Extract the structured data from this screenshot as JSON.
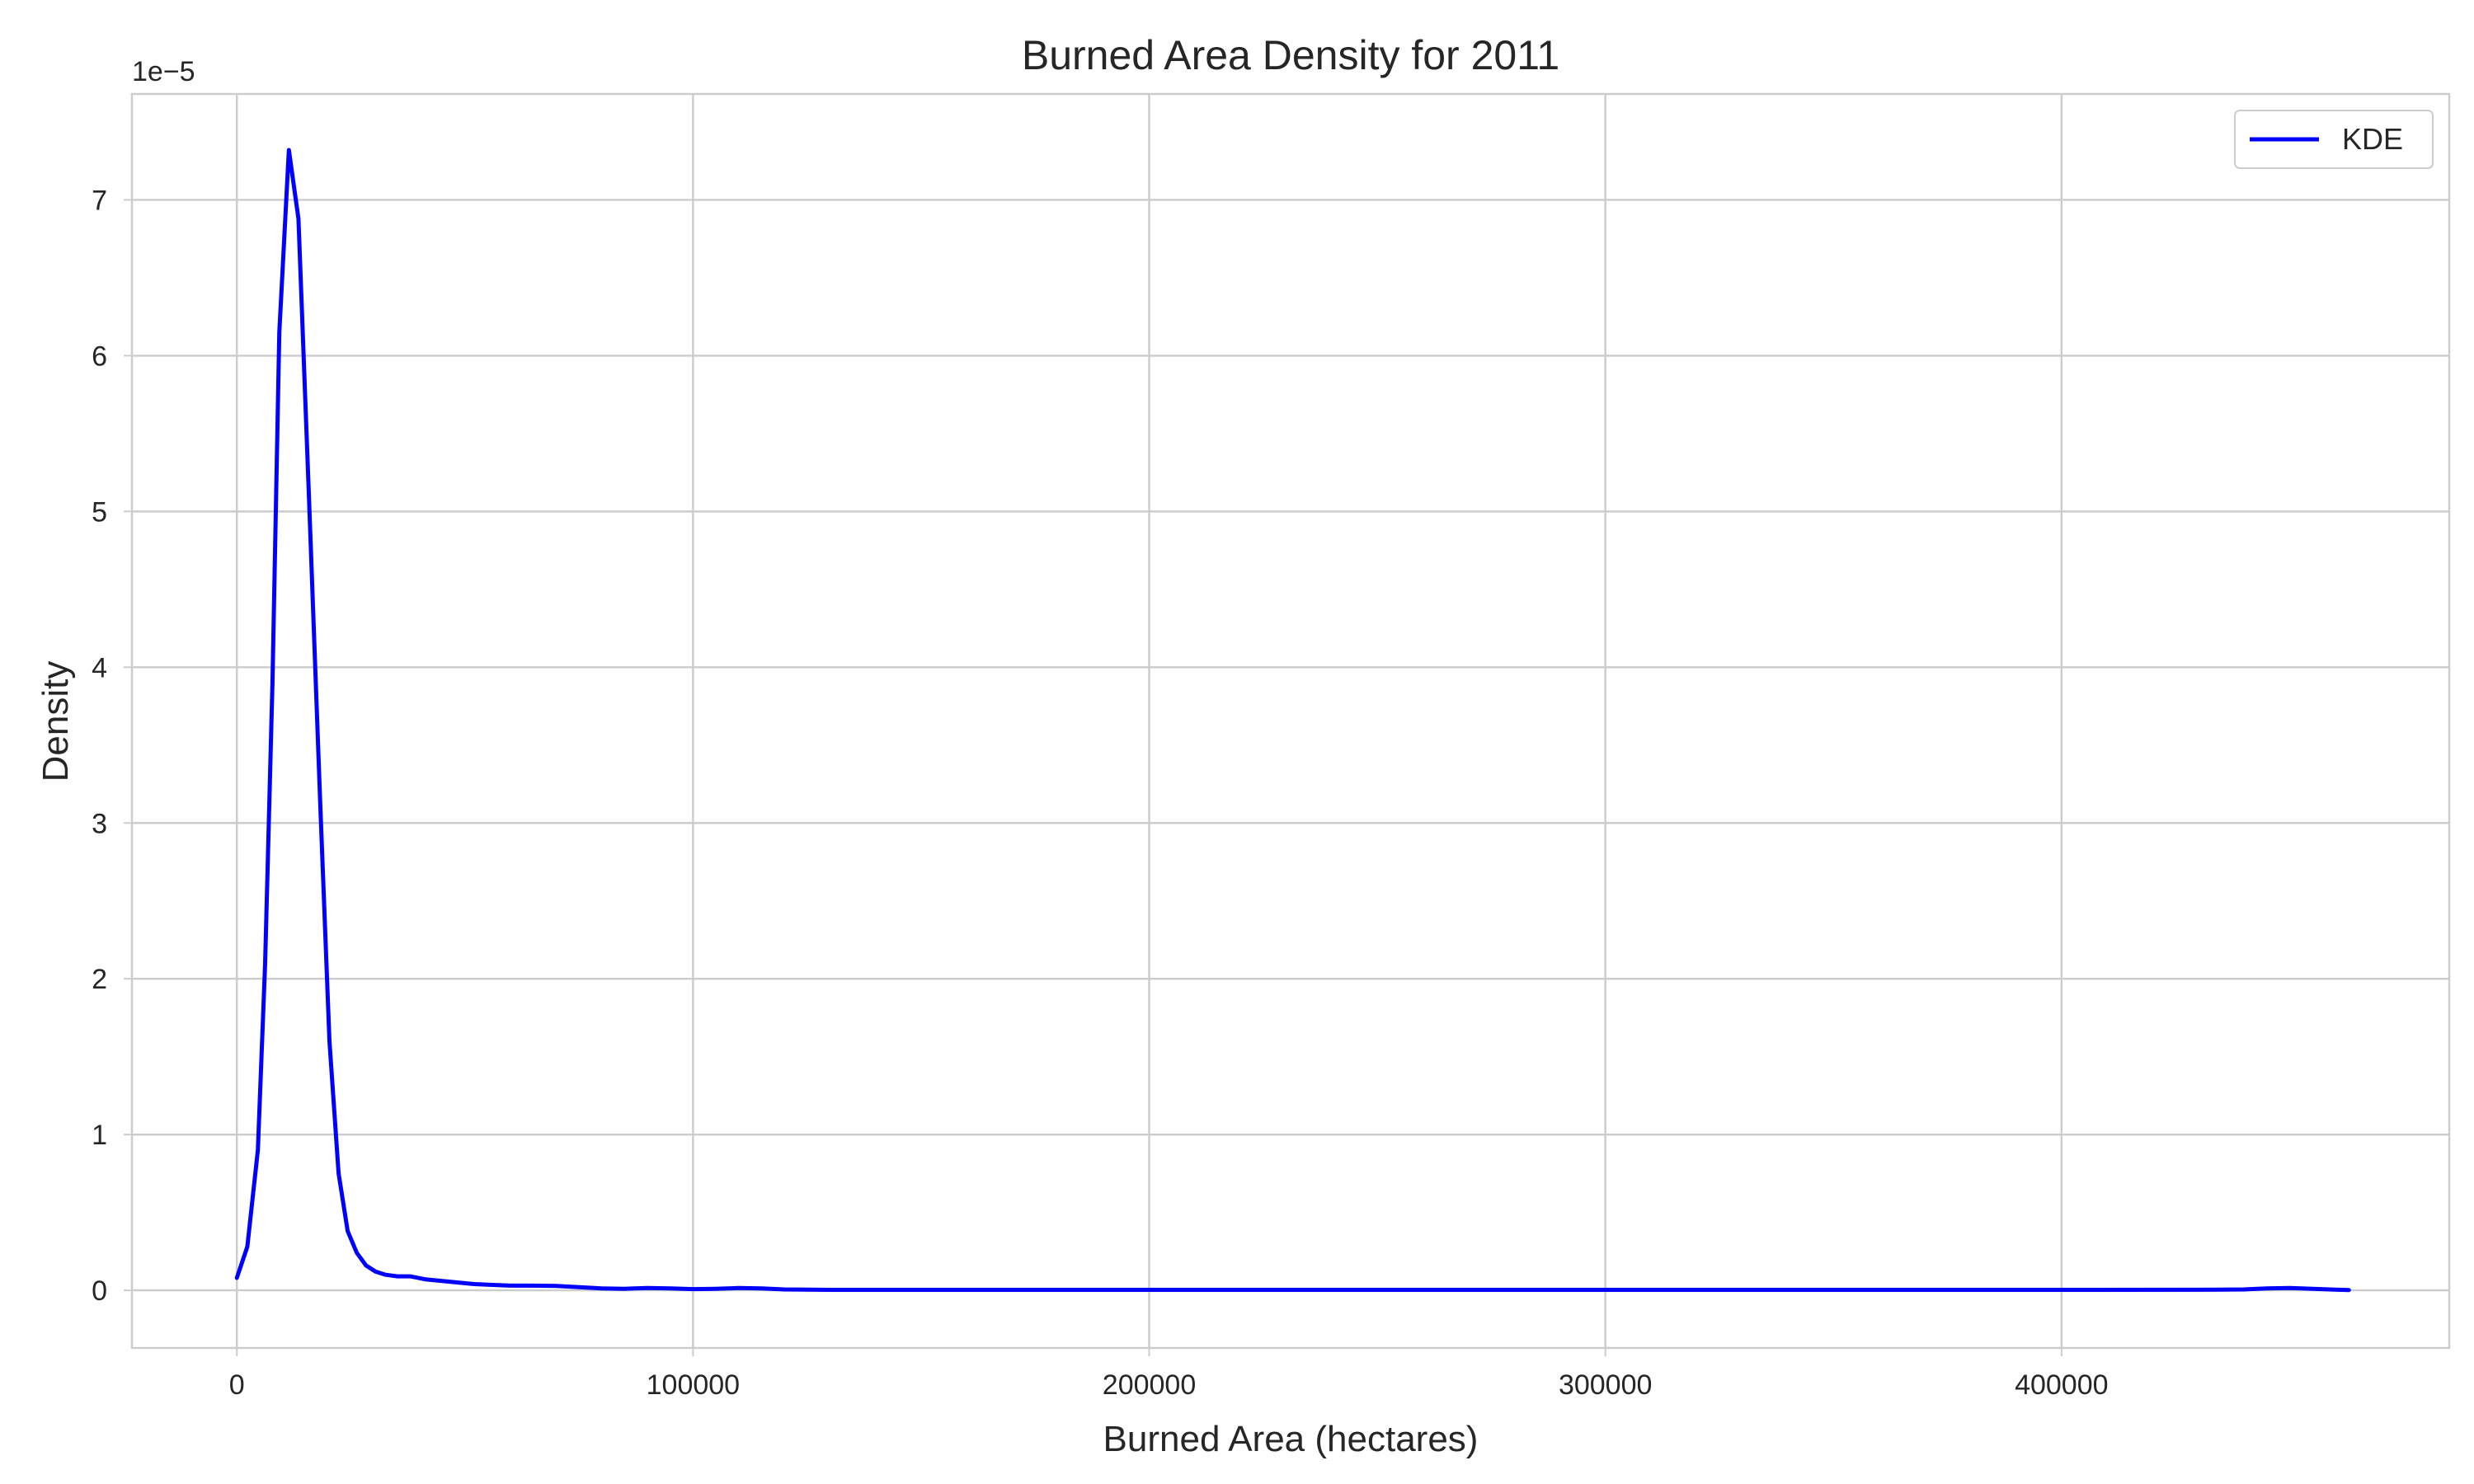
{
  "chart_data": {
    "type": "line",
    "title": "Burned Area Density for 2011",
    "xlabel": "Burned Area (hectares)",
    "ylabel": "Density",
    "y_scale_label": "1e−5",
    "y_multiplier": 1e-05,
    "xlim": [
      -23000,
      485000
    ],
    "ylim": [
      -0.37,
      7.68
    ],
    "x_ticks": [
      0,
      100000,
      200000,
      300000,
      400000
    ],
    "x_tick_labels": [
      "0",
      "100000",
      "200000",
      "300000",
      "400000"
    ],
    "y_ticks": [
      0,
      1,
      2,
      3,
      4,
      5,
      6,
      7
    ],
    "y_tick_labels": [
      "0",
      "1",
      "2",
      "3",
      "4",
      "5",
      "6",
      "7"
    ],
    "grid": true,
    "legend_position": "top-right",
    "series": [
      {
        "name": "KDE",
        "color": "#0000ff",
        "x": [
          0,
          2300,
          4600,
          6200,
          7800,
          9300,
          11400,
          13500,
          15800,
          18300,
          20300,
          22300,
          24300,
          26300,
          28300,
          30400,
          32600,
          35200,
          38000,
          41500,
          45000,
          48500,
          52000,
          56000,
          60000,
          65000,
          70000,
          75000,
          80000,
          85000,
          90000,
          95000,
          100000,
          105000,
          110000,
          115000,
          120000,
          125000,
          130000,
          150000,
          200000,
          250000,
          300000,
          350000,
          400000,
          435000,
          440000,
          445000,
          450000,
          455000,
          460000,
          463000
        ],
        "y": [
          0.08,
          0.28,
          0.9,
          2.1,
          3.9,
          6.15,
          7.32,
          6.88,
          5.1,
          3.1,
          1.6,
          0.75,
          0.38,
          0.24,
          0.16,
          0.12,
          0.1,
          0.09,
          0.09,
          0.07,
          0.06,
          0.05,
          0.04,
          0.035,
          0.03,
          0.03,
          0.028,
          0.02,
          0.012,
          0.01,
          0.015,
          0.012,
          0.008,
          0.01,
          0.015,
          0.012,
          0.006,
          0.004,
          0.003,
          0.003,
          0.003,
          0.003,
          0.003,
          0.003,
          0.003,
          0.004,
          0.006,
          0.012,
          0.015,
          0.01,
          0.004,
          0.002
        ]
      }
    ]
  }
}
